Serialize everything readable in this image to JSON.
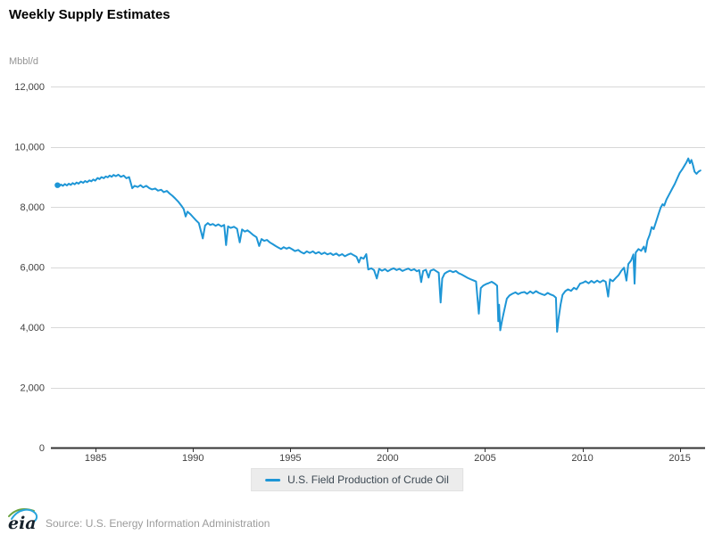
{
  "header": {
    "title": "Weekly Supply Estimates"
  },
  "chart_data": {
    "type": "line",
    "title": "Weekly Supply Estimates",
    "xlabel": "",
    "ylabel": "Mbbl/d",
    "unit_label": "Mbbl/d",
    "grid": true,
    "legend_position": "bottom-center",
    "xlim": [
      1982.7,
      2016.3
    ],
    "ylim": [
      0,
      12000
    ],
    "x_ticks": [
      1985,
      1990,
      1995,
      2000,
      2005,
      2010,
      2015
    ],
    "x_tick_labels": [
      "1985",
      "1990",
      "1995",
      "2000",
      "2005",
      "2010",
      "2015"
    ],
    "y_ticks": [
      0,
      2000,
      4000,
      6000,
      8000,
      10000,
      12000
    ],
    "y_tick_labels": [
      "0",
      "2,000",
      "4,000",
      "6,000",
      "8,000",
      "10,000",
      "12,000"
    ],
    "series": [
      {
        "name": "U.S. Field Production of Crude Oil",
        "color": "#1e96d6",
        "marker_on_first_point": true,
        "points": [
          [
            1983.04,
            8720
          ],
          [
            1983.12,
            8680
          ],
          [
            1983.22,
            8740
          ],
          [
            1983.32,
            8700
          ],
          [
            1983.42,
            8760
          ],
          [
            1983.52,
            8710
          ],
          [
            1983.62,
            8770
          ],
          [
            1983.72,
            8730
          ],
          [
            1983.82,
            8790
          ],
          [
            1983.92,
            8750
          ],
          [
            1984.02,
            8810
          ],
          [
            1984.12,
            8770
          ],
          [
            1984.24,
            8840
          ],
          [
            1984.36,
            8800
          ],
          [
            1984.46,
            8860
          ],
          [
            1984.56,
            8820
          ],
          [
            1984.68,
            8880
          ],
          [
            1984.78,
            8850
          ],
          [
            1984.88,
            8910
          ],
          [
            1984.98,
            8870
          ],
          [
            1985.1,
            8960
          ],
          [
            1985.2,
            8920
          ],
          [
            1985.3,
            8990
          ],
          [
            1985.42,
            8950
          ],
          [
            1985.52,
            9010
          ],
          [
            1985.62,
            8980
          ],
          [
            1985.72,
            9040
          ],
          [
            1985.82,
            9000
          ],
          [
            1985.92,
            9060
          ],
          [
            1986.04,
            9020
          ],
          [
            1986.16,
            9070
          ],
          [
            1986.3,
            9000
          ],
          [
            1986.44,
            9040
          ],
          [
            1986.58,
            8950
          ],
          [
            1986.72,
            8990
          ],
          [
            1986.88,
            8620
          ],
          [
            1987.0,
            8700
          ],
          [
            1987.16,
            8660
          ],
          [
            1987.3,
            8720
          ],
          [
            1987.44,
            8650
          ],
          [
            1987.6,
            8700
          ],
          [
            1987.76,
            8620
          ],
          [
            1987.9,
            8580
          ],
          [
            1988.06,
            8610
          ],
          [
            1988.2,
            8540
          ],
          [
            1988.36,
            8570
          ],
          [
            1988.5,
            8490
          ],
          [
            1988.66,
            8530
          ],
          [
            1988.8,
            8440
          ],
          [
            1988.94,
            8370
          ],
          [
            1989.1,
            8270
          ],
          [
            1989.26,
            8160
          ],
          [
            1989.4,
            8040
          ],
          [
            1989.52,
            7930
          ],
          [
            1989.62,
            7680
          ],
          [
            1989.72,
            7840
          ],
          [
            1989.86,
            7760
          ],
          [
            1990.0,
            7660
          ],
          [
            1990.16,
            7550
          ],
          [
            1990.3,
            7460
          ],
          [
            1990.5,
            6950
          ],
          [
            1990.62,
            7380
          ],
          [
            1990.76,
            7460
          ],
          [
            1990.88,
            7400
          ],
          [
            1991.02,
            7430
          ],
          [
            1991.16,
            7370
          ],
          [
            1991.3,
            7420
          ],
          [
            1991.46,
            7350
          ],
          [
            1991.6,
            7400
          ],
          [
            1991.7,
            6730
          ],
          [
            1991.8,
            7350
          ],
          [
            1991.94,
            7300
          ],
          [
            1992.1,
            7340
          ],
          [
            1992.26,
            7270
          ],
          [
            1992.4,
            6820
          ],
          [
            1992.52,
            7250
          ],
          [
            1992.66,
            7180
          ],
          [
            1992.8,
            7220
          ],
          [
            1992.94,
            7150
          ],
          [
            1993.1,
            7060
          ],
          [
            1993.26,
            6990
          ],
          [
            1993.4,
            6700
          ],
          [
            1993.52,
            6930
          ],
          [
            1993.66,
            6870
          ],
          [
            1993.8,
            6900
          ],
          [
            1993.94,
            6820
          ],
          [
            1994.1,
            6760
          ],
          [
            1994.24,
            6700
          ],
          [
            1994.38,
            6650
          ],
          [
            1994.52,
            6600
          ],
          [
            1994.66,
            6660
          ],
          [
            1994.8,
            6610
          ],
          [
            1994.94,
            6650
          ],
          [
            1995.1,
            6590
          ],
          [
            1995.24,
            6530
          ],
          [
            1995.4,
            6570
          ],
          [
            1995.54,
            6500
          ],
          [
            1995.7,
            6450
          ],
          [
            1995.84,
            6520
          ],
          [
            1996.0,
            6470
          ],
          [
            1996.16,
            6520
          ],
          [
            1996.3,
            6450
          ],
          [
            1996.46,
            6500
          ],
          [
            1996.6,
            6430
          ],
          [
            1996.76,
            6480
          ],
          [
            1996.9,
            6420
          ],
          [
            1997.06,
            6460
          ],
          [
            1997.2,
            6400
          ],
          [
            1997.36,
            6450
          ],
          [
            1997.5,
            6380
          ],
          [
            1997.66,
            6430
          ],
          [
            1997.8,
            6360
          ],
          [
            1997.94,
            6410
          ],
          [
            1998.1,
            6450
          ],
          [
            1998.26,
            6390
          ],
          [
            1998.4,
            6340
          ],
          [
            1998.52,
            6150
          ],
          [
            1998.62,
            6320
          ],
          [
            1998.76,
            6280
          ],
          [
            1998.9,
            6430
          ],
          [
            1999.0,
            5920
          ],
          [
            1999.16,
            5960
          ],
          [
            1999.3,
            5900
          ],
          [
            1999.44,
            5620
          ],
          [
            1999.56,
            5940
          ],
          [
            1999.7,
            5880
          ],
          [
            1999.86,
            5930
          ],
          [
            2000.0,
            5860
          ],
          [
            2000.16,
            5920
          ],
          [
            2000.3,
            5960
          ],
          [
            2000.46,
            5900
          ],
          [
            2000.6,
            5940
          ],
          [
            2000.76,
            5870
          ],
          [
            2000.9,
            5910
          ],
          [
            2001.06,
            5950
          ],
          [
            2001.2,
            5890
          ],
          [
            2001.36,
            5930
          ],
          [
            2001.5,
            5860
          ],
          [
            2001.62,
            5900
          ],
          [
            2001.72,
            5500
          ],
          [
            2001.82,
            5870
          ],
          [
            2001.96,
            5910
          ],
          [
            2002.1,
            5650
          ],
          [
            2002.2,
            5880
          ],
          [
            2002.36,
            5920
          ],
          [
            2002.5,
            5860
          ],
          [
            2002.62,
            5810
          ],
          [
            2002.72,
            4820
          ],
          [
            2002.8,
            5620
          ],
          [
            2002.92,
            5780
          ],
          [
            2003.06,
            5840
          ],
          [
            2003.2,
            5880
          ],
          [
            2003.36,
            5830
          ],
          [
            2003.5,
            5870
          ],
          [
            2003.64,
            5800
          ],
          [
            2003.8,
            5750
          ],
          [
            2003.94,
            5700
          ],
          [
            2004.1,
            5640
          ],
          [
            2004.24,
            5600
          ],
          [
            2004.4,
            5560
          ],
          [
            2004.54,
            5520
          ],
          [
            2004.68,
            4450
          ],
          [
            2004.78,
            5300
          ],
          [
            2004.9,
            5380
          ],
          [
            2005.04,
            5430
          ],
          [
            2005.2,
            5470
          ],
          [
            2005.34,
            5510
          ],
          [
            2005.5,
            5450
          ],
          [
            2005.62,
            5380
          ],
          [
            2005.68,
            4200
          ],
          [
            2005.72,
            4750
          ],
          [
            2005.78,
            3900
          ],
          [
            2005.88,
            4250
          ],
          [
            2005.98,
            4550
          ],
          [
            2006.12,
            4950
          ],
          [
            2006.26,
            5060
          ],
          [
            2006.4,
            5110
          ],
          [
            2006.56,
            5160
          ],
          [
            2006.7,
            5100
          ],
          [
            2006.86,
            5150
          ],
          [
            2007.02,
            5170
          ],
          [
            2007.16,
            5110
          ],
          [
            2007.32,
            5190
          ],
          [
            2007.46,
            5130
          ],
          [
            2007.62,
            5200
          ],
          [
            2007.76,
            5140
          ],
          [
            2007.92,
            5100
          ],
          [
            2008.06,
            5070
          ],
          [
            2008.22,
            5140
          ],
          [
            2008.36,
            5090
          ],
          [
            2008.52,
            5050
          ],
          [
            2008.64,
            4980
          ],
          [
            2008.7,
            3850
          ],
          [
            2008.78,
            4300
          ],
          [
            2008.88,
            4750
          ],
          [
            2008.98,
            5080
          ],
          [
            2009.12,
            5200
          ],
          [
            2009.26,
            5260
          ],
          [
            2009.42,
            5210
          ],
          [
            2009.56,
            5310
          ],
          [
            2009.7,
            5260
          ],
          [
            2009.88,
            5450
          ],
          [
            2010.02,
            5480
          ],
          [
            2010.16,
            5530
          ],
          [
            2010.32,
            5460
          ],
          [
            2010.46,
            5540
          ],
          [
            2010.6,
            5480
          ],
          [
            2010.76,
            5550
          ],
          [
            2010.9,
            5490
          ],
          [
            2011.06,
            5560
          ],
          [
            2011.2,
            5510
          ],
          [
            2011.32,
            5020
          ],
          [
            2011.42,
            5590
          ],
          [
            2011.56,
            5530
          ],
          [
            2011.72,
            5640
          ],
          [
            2011.86,
            5730
          ],
          [
            2012.0,
            5880
          ],
          [
            2012.14,
            5980
          ],
          [
            2012.26,
            5550
          ],
          [
            2012.36,
            6100
          ],
          [
            2012.5,
            6220
          ],
          [
            2012.62,
            6420
          ],
          [
            2012.68,
            5450
          ],
          [
            2012.74,
            6480
          ],
          [
            2012.88,
            6600
          ],
          [
            2013.02,
            6540
          ],
          [
            2013.16,
            6680
          ],
          [
            2013.24,
            6500
          ],
          [
            2013.34,
            6880
          ],
          [
            2013.46,
            7080
          ],
          [
            2013.56,
            7330
          ],
          [
            2013.66,
            7260
          ],
          [
            2013.78,
            7500
          ],
          [
            2013.9,
            7740
          ],
          [
            2014.02,
            7980
          ],
          [
            2014.12,
            8090
          ],
          [
            2014.2,
            8040
          ],
          [
            2014.32,
            8250
          ],
          [
            2014.46,
            8420
          ],
          [
            2014.6,
            8590
          ],
          [
            2014.74,
            8760
          ],
          [
            2014.88,
            8960
          ],
          [
            2015.0,
            9130
          ],
          [
            2015.12,
            9240
          ],
          [
            2015.24,
            9370
          ],
          [
            2015.34,
            9480
          ],
          [
            2015.44,
            9610
          ],
          [
            2015.52,
            9450
          ],
          [
            2015.6,
            9560
          ],
          [
            2015.68,
            9380
          ],
          [
            2015.76,
            9170
          ],
          [
            2015.86,
            9100
          ],
          [
            2015.96,
            9170
          ],
          [
            2016.06,
            9210
          ]
        ]
      }
    ]
  },
  "legend": {
    "label": "U.S. Field Production of Crude Oil"
  },
  "footer": {
    "logo_text": "eia",
    "source": "Source: U.S. Energy Information Administration"
  },
  "colors": {
    "line": "#1e96d6",
    "grid": "#d8d8d8",
    "axis": "#333333",
    "tick_label": "#404040",
    "title": "#000000",
    "unit_label": "#949494",
    "legend_bg": "#ececec",
    "legend_text": "#3c4852",
    "source_text": "#9b9b9b",
    "logo_green": "#69a33e",
    "logo_blue": "#29a5dc",
    "logo_text_color": "#16212b"
  }
}
